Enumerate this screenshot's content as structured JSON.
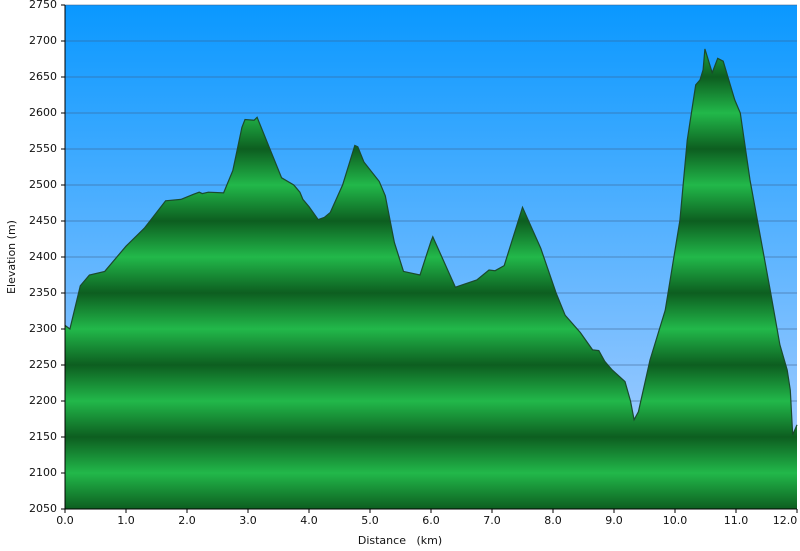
{
  "chart_data": {
    "type": "area",
    "x_label": "Distance   (km)",
    "y_label": "Elevation (m)",
    "color": "#22b84a",
    "line_color": "#1b4a2c",
    "grid": true,
    "xlim": [
      0,
      12
    ],
    "ylim": [
      2050,
      2750
    ],
    "xticks": [
      {
        "value": 0,
        "label": "0.0"
      },
      {
        "value": 1,
        "label": "1.0"
      },
      {
        "value": 2,
        "label": "2.0"
      },
      {
        "value": 3,
        "label": "3.0"
      },
      {
        "value": 4,
        "label": "4.0"
      },
      {
        "value": 5,
        "label": "5.0"
      },
      {
        "value": 6,
        "label": "6.0"
      },
      {
        "value": 7,
        "label": "7.0"
      },
      {
        "value": 8,
        "label": "8.0"
      },
      {
        "value": 9,
        "label": "9.0"
      },
      {
        "value": 10,
        "label": "10.0"
      },
      {
        "value": 11,
        "label": "11.0"
      },
      {
        "value": 12,
        "label": "12.0"
      }
    ],
    "yticks": [
      2050,
      2100,
      2150,
      2200,
      2250,
      2300,
      2350,
      2400,
      2450,
      2500,
      2550,
      2600,
      2650,
      2700,
      2750
    ],
    "x": [
      0,
      0.08,
      0.25,
      0.4,
      0.65,
      1.0,
      1.3,
      1.65,
      1.9,
      2.1,
      2.2,
      2.25,
      2.35,
      2.6,
      2.75,
      2.9,
      2.95,
      3.1,
      3.15,
      3.55,
      3.75,
      3.85,
      3.9,
      4.0,
      4.15,
      4.25,
      4.35,
      4.55,
      4.75,
      4.8,
      4.9,
      5.15,
      5.25,
      5.4,
      5.55,
      5.82,
      6.0,
      6.03,
      6.4,
      6.75,
      6.95,
      7.05,
      7.2,
      7.5,
      7.8,
      8.05,
      8.2,
      8.45,
      8.65,
      8.75,
      8.85,
      8.97,
      9.18,
      9.27,
      9.33,
      9.4,
      9.59,
      9.84,
      10.08,
      10.2,
      10.34,
      10.41,
      10.46,
      10.49,
      10.61,
      10.7,
      10.79,
      10.98,
      11.07,
      11.23,
      11.56,
      11.72,
      11.84,
      11.89,
      11.93,
      12.0
    ],
    "values": [
      2305,
      2300,
      2360,
      2375,
      2380,
      2415,
      2440,
      2478,
      2480,
      2487,
      2490,
      2488,
      2490,
      2489,
      2520,
      2580,
      2591,
      2590,
      2594,
      2510,
      2500,
      2490,
      2480,
      2470,
      2452,
      2455,
      2462,
      2500,
      2555,
      2553,
      2532,
      2505,
      2485,
      2420,
      2380,
      2375,
      2422,
      2428,
      2358,
      2368,
      2382,
      2381,
      2388,
      2469,
      2412,
      2350,
      2319,
      2295,
      2271,
      2270,
      2255,
      2243,
      2227,
      2200,
      2174,
      2185,
      2257,
      2326,
      2451,
      2562,
      2639,
      2646,
      2660,
      2689,
      2656,
      2676,
      2672,
      2618,
      2600,
      2507,
      2354,
      2278,
      2243,
      2215,
      2153,
      2167
    ]
  }
}
